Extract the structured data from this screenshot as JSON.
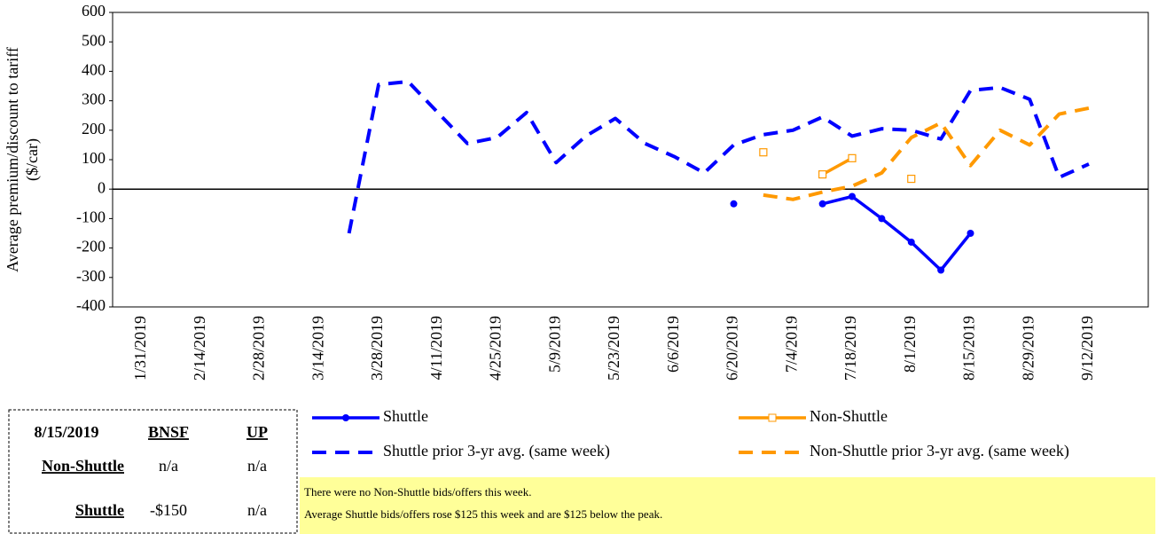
{
  "chart_data": {
    "type": "line",
    "y_label": [
      "Average premium/discount to tariff",
      "($/car)"
    ],
    "categories": [
      "1/31/2019",
      null,
      "2/14/2019",
      null,
      "2/28/2019",
      null,
      "3/14/2019",
      null,
      "3/28/2019",
      null,
      "4/11/2019",
      null,
      "4/25/2019",
      null,
      "5/9/2019",
      null,
      "5/23/2019",
      null,
      "6/6/2019",
      null,
      "6/20/2019",
      null,
      "7/4/2019",
      null,
      "7/18/2019",
      null,
      "8/1/2019",
      null,
      "8/15/2019",
      null,
      "8/29/2019",
      null,
      "9/12/2019"
    ],
    "series": [
      {
        "name": "Shuttle",
        "color": "#0000ff",
        "dash": false,
        "marker": "circle",
        "values": [
          null,
          null,
          null,
          null,
          null,
          null,
          null,
          null,
          null,
          null,
          null,
          null,
          null,
          null,
          null,
          null,
          null,
          null,
          null,
          null,
          -50,
          null,
          null,
          -50,
          -25,
          -100,
          -180,
          -275,
          -150,
          null,
          null,
          null,
          null
        ]
      },
      {
        "name": "Non-Shuttle",
        "color": "#ff9900",
        "dash": false,
        "marker": "square",
        "values": [
          null,
          null,
          null,
          null,
          null,
          null,
          null,
          null,
          null,
          null,
          null,
          null,
          null,
          null,
          null,
          null,
          null,
          null,
          null,
          null,
          null,
          125,
          null,
          50,
          105,
          null,
          35,
          null,
          null,
          null,
          null,
          null,
          null
        ]
      },
      {
        "name": "Shuttle prior 3-yr avg. (same week)",
        "color": "#0000ff",
        "dash": true,
        "marker": null,
        "values": [
          null,
          null,
          null,
          null,
          null,
          null,
          null,
          -150,
          355,
          365,
          260,
          155,
          175,
          260,
          90,
          180,
          240,
          155,
          110,
          55,
          150,
          185,
          200,
          245,
          180,
          205,
          200,
          170,
          335,
          345,
          305,
          40,
          85
        ]
      },
      {
        "name": "Non-Shuttle prior 3-yr avg. (same week)",
        "color": "#ff9900",
        "dash": true,
        "marker": null,
        "values": [
          null,
          null,
          null,
          null,
          null,
          null,
          null,
          null,
          null,
          null,
          null,
          null,
          null,
          null,
          null,
          null,
          null,
          null,
          null,
          null,
          null,
          -20,
          -35,
          -10,
          10,
          55,
          175,
          225,
          80,
          200,
          150,
          255,
          275
        ]
      }
    ],
    "ylim": [
      -400,
      600
    ],
    "yticks": [
      -400,
      -300,
      -200,
      -100,
      0,
      100,
      200,
      300,
      400,
      500,
      600
    ],
    "zero_line": true
  },
  "table": {
    "header": [
      "8/15/2019",
      "BNSF",
      "UP"
    ],
    "rows": [
      [
        "Non-Shuttle",
        "n/a",
        "n/a"
      ],
      [
        "Shuttle",
        "-$150",
        "n/a"
      ]
    ]
  },
  "note": [
    "There were no Non-Shuttle bids/offers  this week.",
    "Average Shuttle bids/offers  rose $125 this week and are $125 below the peak."
  ]
}
